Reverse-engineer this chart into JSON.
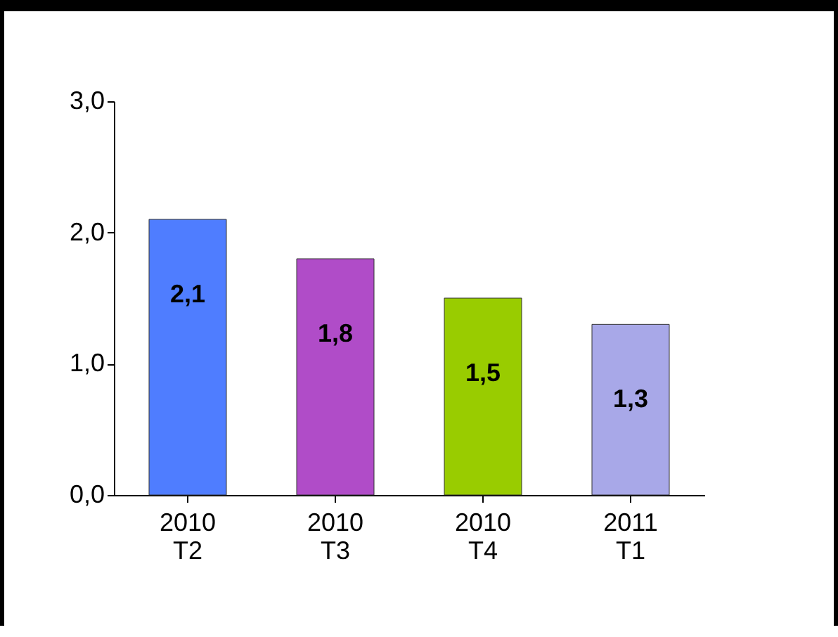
{
  "chart_data": {
    "type": "bar",
    "categories": [
      "2010 T2",
      "2010 T3",
      "2010 T4",
      "2011 T1"
    ],
    "values": [
      2.1,
      1.8,
      1.5,
      1.3
    ],
    "colors": [
      "#4f7dff",
      "#b04cc8",
      "#99cc00",
      "#a8a8e8"
    ],
    "value_labels": [
      "2,1",
      "1,8",
      "1,5",
      "1,3"
    ],
    "ylim": [
      0,
      3
    ],
    "yticks": [
      {
        "value": 0,
        "label": "0,0"
      },
      {
        "value": 1,
        "label": "1,0"
      },
      {
        "value": 2,
        "label": "2,0"
      },
      {
        "value": 3,
        "label": "3,0"
      }
    ],
    "grid": false
  }
}
